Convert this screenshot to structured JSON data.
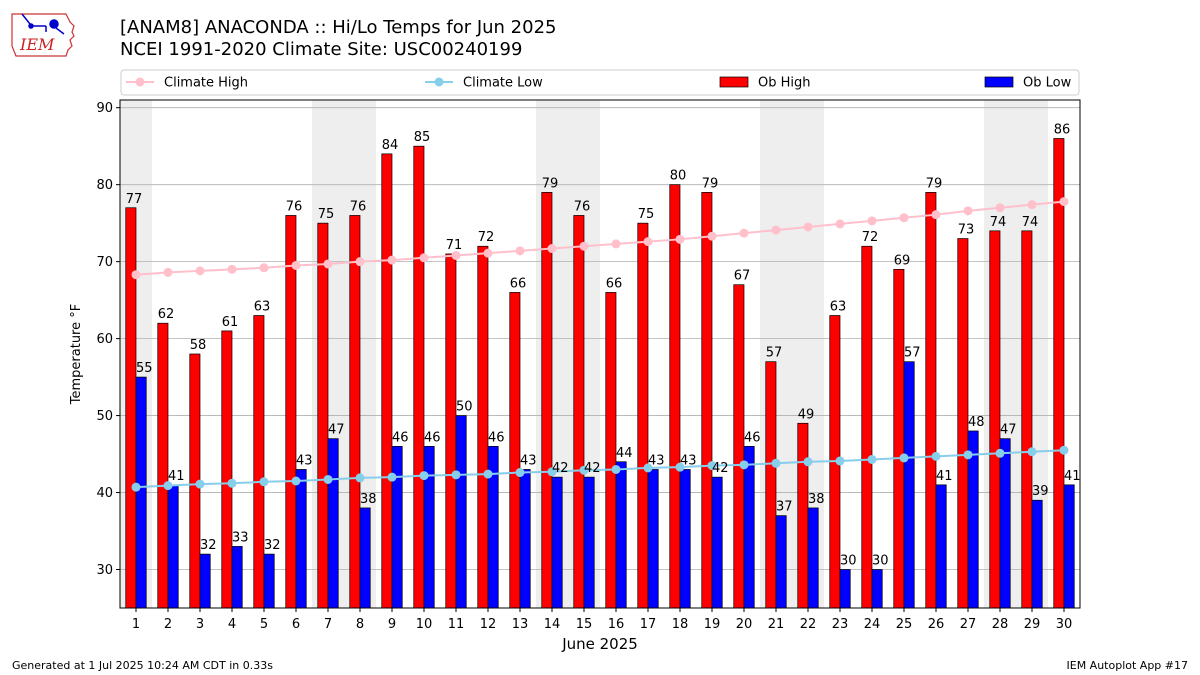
{
  "header": {
    "title_line1": "[ANAM8] ANACONDA :: Hi/Lo Temps for Jun 2025",
    "title_line2": "NCEI 1991-2020 Climate Site: USC00240199"
  },
  "logo": {
    "text": "IEM"
  },
  "footer": {
    "generated": "Generated at 1 Jul 2025 10:24 AM CDT in 0.33s",
    "app": "IEM Autoplot App #17"
  },
  "colors": {
    "ob_high": "#ff0000",
    "ob_low": "#0000ff",
    "climate_high": "#ffc0cb",
    "climate_low": "#87ceeb",
    "weekend_band": "#eeeeee",
    "grid": "#b0b0b0"
  },
  "chart_data": {
    "type": "bar",
    "title": "[ANAM8] ANACONDA :: Hi/Lo Temps for Jun 2025",
    "xlabel": "June 2025",
    "ylabel": "Temperature °F",
    "ylim": [
      25,
      91
    ],
    "yticks": [
      30,
      40,
      50,
      60,
      70,
      80,
      90
    ],
    "grid": "y",
    "legend_position": "top",
    "categories": [
      "1",
      "2",
      "3",
      "4",
      "5",
      "6",
      "7",
      "8",
      "9",
      "10",
      "11",
      "12",
      "13",
      "14",
      "15",
      "16",
      "17",
      "18",
      "19",
      "20",
      "21",
      "22",
      "23",
      "24",
      "25",
      "26",
      "27",
      "28",
      "29",
      "30"
    ],
    "weekend_days": [
      1,
      7,
      8,
      14,
      15,
      21,
      22,
      28,
      29
    ],
    "series": [
      {
        "name": "Ob High",
        "kind": "bar",
        "values": [
          77,
          62,
          58,
          61,
          63,
          76,
          75,
          76,
          84,
          85,
          71,
          72,
          66,
          79,
          76,
          66,
          75,
          80,
          79,
          67,
          57,
          49,
          63,
          72,
          69,
          79,
          73,
          74,
          74,
          86
        ]
      },
      {
        "name": "Ob Low",
        "kind": "bar",
        "values": [
          55,
          41,
          32,
          33,
          32,
          43,
          47,
          38,
          46,
          46,
          50,
          46,
          43,
          42,
          42,
          44,
          43,
          43,
          42,
          46,
          37,
          38,
          30,
          30,
          57,
          41,
          48,
          47,
          39,
          41
        ]
      },
      {
        "name": "Climate High",
        "kind": "line",
        "values": [
          68.3,
          68.6,
          68.8,
          69.0,
          69.2,
          69.5,
          69.7,
          70.0,
          70.2,
          70.5,
          70.8,
          71.1,
          71.4,
          71.7,
          72.0,
          72.3,
          72.6,
          72.9,
          73.3,
          73.7,
          74.1,
          74.5,
          74.9,
          75.3,
          75.7,
          76.1,
          76.6,
          77.0,
          77.4,
          77.8
        ]
      },
      {
        "name": "Climate Low",
        "kind": "line",
        "values": [
          40.7,
          40.9,
          41.1,
          41.2,
          41.4,
          41.5,
          41.7,
          41.9,
          42.0,
          42.2,
          42.3,
          42.4,
          42.6,
          42.7,
          42.9,
          43.0,
          43.2,
          43.3,
          43.5,
          43.6,
          43.8,
          44.0,
          44.1,
          44.3,
          44.5,
          44.7,
          44.9,
          45.1,
          45.3,
          45.5
        ]
      }
    ]
  }
}
